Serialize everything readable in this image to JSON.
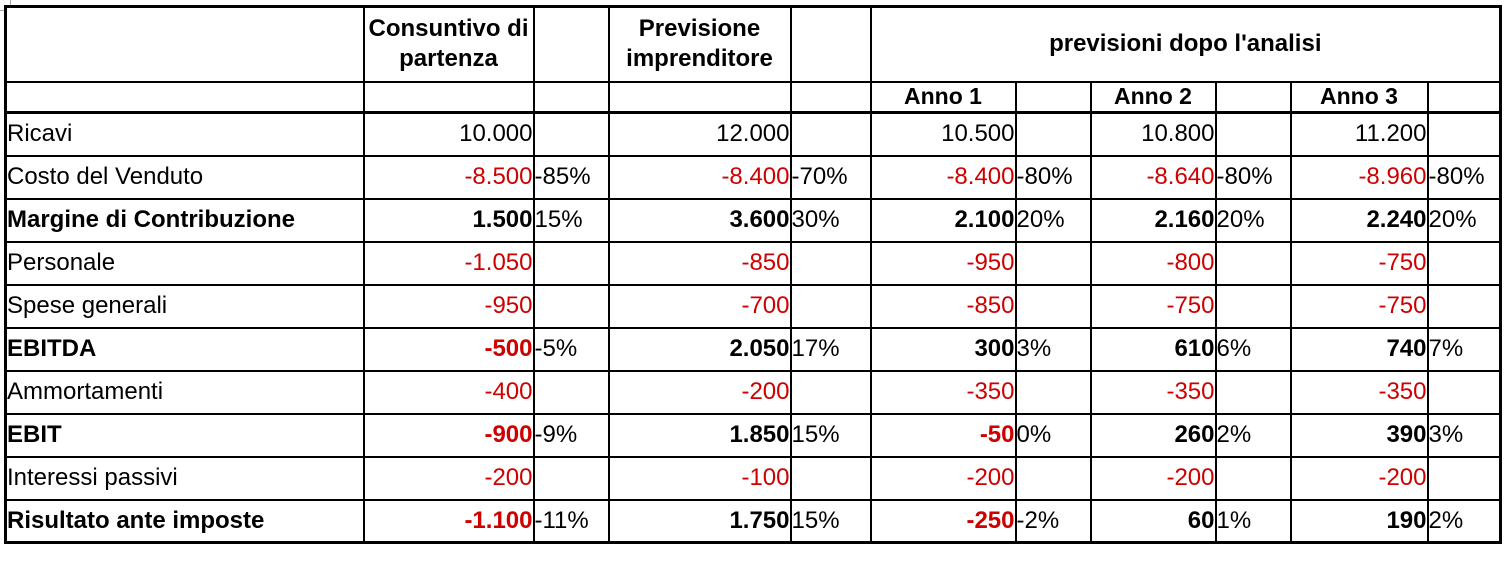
{
  "colors": {
    "negative_value_red": "#CE0000",
    "text_black": "#000000",
    "border_black": "#000000",
    "background_white": "#ffffff"
  },
  "table": {
    "header": {
      "consuntivo": "Consuntivo di partenza",
      "previsione": "Previsione imprenditore",
      "group": "previsioni dopo l'analisi",
      "anno1": "Anno 1",
      "anno2": "Anno 2",
      "anno3": "Anno 3"
    },
    "rows": [
      {
        "label": "Ricavi",
        "bold": false,
        "cells": [
          {
            "v": "10.000",
            "p": "",
            "red": false
          },
          {
            "v": "12.000",
            "p": "",
            "red": false
          },
          {
            "v": "10.500",
            "p": "",
            "red": false
          },
          {
            "v": "10.800",
            "p": "",
            "red": false
          },
          {
            "v": "11.200",
            "p": "",
            "red": false
          }
        ]
      },
      {
        "label": "Costo del Venduto",
        "bold": false,
        "cells": [
          {
            "v": "-8.500",
            "p": "-85%",
            "red": true
          },
          {
            "v": "-8.400",
            "p": "-70%",
            "red": true
          },
          {
            "v": "-8.400",
            "p": "-80%",
            "red": true
          },
          {
            "v": "-8.640",
            "p": "-80%",
            "red": true
          },
          {
            "v": "-8.960",
            "p": "-80%",
            "red": true
          }
        ]
      },
      {
        "label": "Margine di Contribuzione",
        "bold": true,
        "cells": [
          {
            "v": "1.500",
            "p": "15%",
            "red": false
          },
          {
            "v": "3.600",
            "p": "30%",
            "red": false
          },
          {
            "v": "2.100",
            "p": "20%",
            "red": false
          },
          {
            "v": "2.160",
            "p": "20%",
            "red": false
          },
          {
            "v": "2.240",
            "p": "20%",
            "red": false
          }
        ]
      },
      {
        "label": "Personale",
        "bold": false,
        "cells": [
          {
            "v": "-1.050",
            "p": "",
            "red": true
          },
          {
            "v": "-850",
            "p": "",
            "red": true
          },
          {
            "v": "-950",
            "p": "",
            "red": true
          },
          {
            "v": "-800",
            "p": "",
            "red": true
          },
          {
            "v": "-750",
            "p": "",
            "red": true
          }
        ]
      },
      {
        "label": "Spese generali",
        "bold": false,
        "cells": [
          {
            "v": "-950",
            "p": "",
            "red": true
          },
          {
            "v": "-700",
            "p": "",
            "red": true
          },
          {
            "v": "-850",
            "p": "",
            "red": true
          },
          {
            "v": "-750",
            "p": "",
            "red": true
          },
          {
            "v": "-750",
            "p": "",
            "red": true
          }
        ]
      },
      {
        "label": "EBITDA",
        "bold": true,
        "cells": [
          {
            "v": "-500",
            "p": "-5%",
            "red": true
          },
          {
            "v": "2.050",
            "p": "17%",
            "red": false
          },
          {
            "v": "300",
            "p": "3%",
            "red": false
          },
          {
            "v": "610",
            "p": "6%",
            "red": false
          },
          {
            "v": "740",
            "p": "7%",
            "red": false
          }
        ]
      },
      {
        "label": "Ammortamenti",
        "bold": false,
        "cells": [
          {
            "v": "-400",
            "p": "",
            "red": true
          },
          {
            "v": "-200",
            "p": "",
            "red": true
          },
          {
            "v": "-350",
            "p": "",
            "red": true
          },
          {
            "v": "-350",
            "p": "",
            "red": true
          },
          {
            "v": "-350",
            "p": "",
            "red": true
          }
        ]
      },
      {
        "label": "EBIT",
        "bold": true,
        "cells": [
          {
            "v": "-900",
            "p": "-9%",
            "red": true
          },
          {
            "v": "1.850",
            "p": "15%",
            "red": false
          },
          {
            "v": "-50",
            "p": "0%",
            "red": true
          },
          {
            "v": "260",
            "p": "2%",
            "red": false
          },
          {
            "v": "390",
            "p": "3%",
            "red": false
          }
        ]
      },
      {
        "label": "Interessi passivi",
        "bold": false,
        "cells": [
          {
            "v": "-200",
            "p": "",
            "red": true
          },
          {
            "v": "-100",
            "p": "",
            "red": true
          },
          {
            "v": "-200",
            "p": "",
            "red": true
          },
          {
            "v": "-200",
            "p": "",
            "red": true
          },
          {
            "v": "-200",
            "p": "",
            "red": true
          }
        ]
      },
      {
        "label": "Risultato ante imposte",
        "bold": true,
        "cells": [
          {
            "v": "-1.100",
            "p": "-11%",
            "red": true
          },
          {
            "v": "1.750",
            "p": "15%",
            "red": false
          },
          {
            "v": "-250",
            "p": "-2%",
            "red": true
          },
          {
            "v": "60",
            "p": "1%",
            "red": false
          },
          {
            "v": "190",
            "p": "2%",
            "red": false
          }
        ]
      }
    ]
  },
  "chart_data": {
    "type": "table",
    "title": "previsioni dopo l'analisi",
    "columns": [
      "",
      "Consuntivo di partenza",
      "",
      "Previsione imprenditore",
      "",
      "Anno 1",
      "",
      "Anno 2",
      "",
      "Anno 3",
      ""
    ],
    "rows": [
      [
        "Ricavi",
        "10.000",
        "",
        "12.000",
        "",
        "10.500",
        "",
        "10.800",
        "",
        "11.200",
        ""
      ],
      [
        "Costo del Venduto",
        "-8.500",
        "-85%",
        "-8.400",
        "-70%",
        "-8.400",
        "-80%",
        "-8.640",
        "-80%",
        "-8.960",
        "-80%"
      ],
      [
        "Margine di Contribuzione",
        "1.500",
        "15%",
        "3.600",
        "30%",
        "2.100",
        "20%",
        "2.160",
        "20%",
        "2.240",
        "20%"
      ],
      [
        "Personale",
        "-1.050",
        "",
        "-850",
        "",
        "-950",
        "",
        "-800",
        "",
        "-750",
        ""
      ],
      [
        "Spese generali",
        "-950",
        "",
        "-700",
        "",
        "-850",
        "",
        "-750",
        "",
        "-750",
        ""
      ],
      [
        "EBITDA",
        "-500",
        "-5%",
        "2.050",
        "17%",
        "300",
        "3%",
        "610",
        "6%",
        "740",
        "7%"
      ],
      [
        "Ammortamenti",
        "-400",
        "",
        "-200",
        "",
        "-350",
        "",
        "-350",
        "",
        "-350",
        ""
      ],
      [
        "EBIT",
        "-900",
        "-9%",
        "1.850",
        "15%",
        "-50",
        "0%",
        "260",
        "2%",
        "390",
        "3%"
      ],
      [
        "Interessi passivi",
        "-200",
        "",
        "-100",
        "",
        "-200",
        "",
        "-200",
        "",
        "-200",
        ""
      ],
      [
        "Risultato ante imposte",
        "-1.100",
        "-11%",
        "1.750",
        "15%",
        "-250",
        "-2%",
        "60",
        "1%",
        "190",
        "2%"
      ]
    ],
    "layout": {
      "bold_rows": [
        "Margine di Contribuzione",
        "EBITDA",
        "EBIT",
        "Risultato ante imposte"
      ],
      "negative_values_in_red": true
    }
  }
}
